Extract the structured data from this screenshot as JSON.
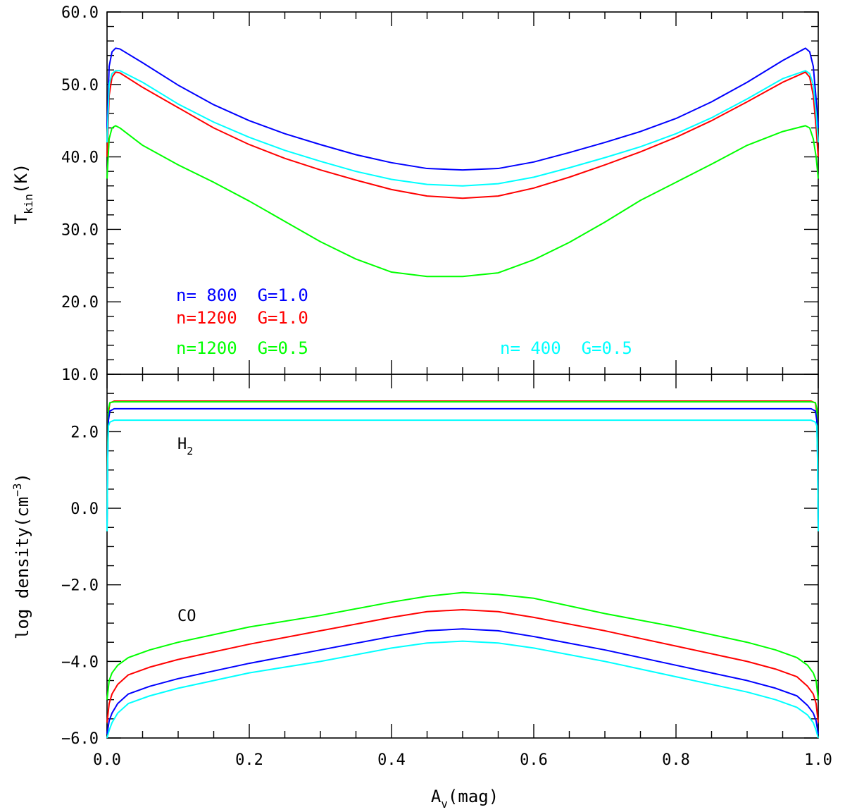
{
  "chart_data": [
    {
      "type": "line",
      "panel": "top",
      "xlabel": "",
      "ylabel_main": "T",
      "ylabel_sub": "kin",
      "ylabel_rest": "(K)",
      "xlim": [
        0.0,
        1.0
      ],
      "ylim": [
        10.0,
        60.0
      ],
      "yticks": [
        10.0,
        20.0,
        30.0,
        40.0,
        50.0,
        60.0
      ],
      "ytick_labels": [
        "10.0",
        "20.0",
        "30.0",
        "40.0",
        "50.0",
        "60.0"
      ],
      "legend": [
        {
          "label": "n= 800  G=1.0",
          "color": "#0000ff"
        },
        {
          "label": "n=1200  G=1.0",
          "color": "#ff0000"
        },
        {
          "label": "n=1200  G=0.5",
          "color": "#00ff00"
        },
        {
          "label": "n= 400  G=0.5",
          "color": "#00ffff"
        }
      ],
      "series": [
        {
          "name": "n= 800  G=1.0",
          "color": "#0000ff",
          "x": [
            0.0,
            0.003,
            0.007,
            0.012,
            0.018,
            0.05,
            0.1,
            0.15,
            0.2,
            0.25,
            0.3,
            0.35,
            0.4,
            0.45,
            0.5,
            0.55,
            0.6,
            0.65,
            0.7,
            0.75,
            0.8,
            0.85,
            0.9,
            0.95,
            0.982,
            0.988,
            0.993,
            0.997,
            1.0
          ],
          "y": [
            44.0,
            52.5,
            54.5,
            55.0,
            54.9,
            53.0,
            49.9,
            47.2,
            45.0,
            43.2,
            41.7,
            40.3,
            39.2,
            38.4,
            38.2,
            38.4,
            39.3,
            40.6,
            42.0,
            43.5,
            45.3,
            47.6,
            50.3,
            53.3,
            55.0,
            54.5,
            52.5,
            48.0,
            44.0
          ]
        },
        {
          "name": "n=1200  G=1.0",
          "color": "#ff0000",
          "x": [
            0.0,
            0.003,
            0.007,
            0.012,
            0.018,
            0.05,
            0.1,
            0.15,
            0.2,
            0.25,
            0.3,
            0.35,
            0.4,
            0.45,
            0.5,
            0.55,
            0.6,
            0.65,
            0.7,
            0.75,
            0.8,
            0.85,
            0.9,
            0.95,
            0.982,
            0.988,
            0.993,
            0.997,
            1.0
          ],
          "y": [
            40.0,
            48.5,
            51.0,
            51.7,
            51.6,
            49.6,
            46.8,
            44.0,
            41.7,
            39.8,
            38.2,
            36.8,
            35.5,
            34.6,
            34.3,
            34.6,
            35.7,
            37.2,
            38.9,
            40.7,
            42.7,
            45.0,
            47.6,
            50.3,
            51.7,
            51.0,
            48.5,
            44.0,
            40.0
          ]
        },
        {
          "name": "n= 400  G=0.5",
          "color": "#00ffff",
          "x": [
            0.0,
            0.003,
            0.007,
            0.012,
            0.018,
            0.05,
            0.1,
            0.15,
            0.2,
            0.25,
            0.3,
            0.35,
            0.4,
            0.45,
            0.5,
            0.55,
            0.6,
            0.65,
            0.7,
            0.75,
            0.8,
            0.85,
            0.9,
            0.95,
            0.982,
            0.988,
            0.993,
            0.997,
            1.0
          ],
          "y": [
            42.0,
            50.0,
            51.5,
            51.9,
            51.9,
            50.3,
            47.3,
            44.8,
            42.7,
            40.9,
            39.4,
            38.0,
            36.9,
            36.2,
            36.0,
            36.3,
            37.2,
            38.5,
            39.9,
            41.4,
            43.2,
            45.4,
            48.0,
            50.8,
            51.9,
            51.5,
            50.0,
            46.0,
            42.0
          ]
        },
        {
          "name": "n=1200  G=0.5",
          "color": "#00ff00",
          "x": [
            0.0,
            0.003,
            0.007,
            0.012,
            0.018,
            0.05,
            0.1,
            0.15,
            0.2,
            0.25,
            0.3,
            0.35,
            0.4,
            0.45,
            0.5,
            0.55,
            0.6,
            0.65,
            0.7,
            0.75,
            0.8,
            0.85,
            0.9,
            0.95,
            0.982,
            0.988,
            0.993,
            0.997,
            1.0
          ],
          "y": [
            37.0,
            42.5,
            44.0,
            44.3,
            44.0,
            41.6,
            38.9,
            36.5,
            33.9,
            31.1,
            28.3,
            25.9,
            24.1,
            23.5,
            23.5,
            24.0,
            25.8,
            28.2,
            31.0,
            34.0,
            36.5,
            39.0,
            41.6,
            43.5,
            44.3,
            44.0,
            42.5,
            40.0,
            37.0
          ]
        }
      ]
    },
    {
      "type": "line",
      "panel": "bottom",
      "xlabel_main": "A",
      "xlabel_sub": "v",
      "xlabel_rest": "(mag)",
      "ylabel": "log density(cm",
      "ylabel_sup": "−3",
      "ylabel_end": ")",
      "xlim": [
        0.0,
        1.0
      ],
      "ylim": [
        -6.0,
        3.5
      ],
      "xticks": [
        0.0,
        0.2,
        0.4,
        0.6,
        0.8,
        1.0
      ],
      "xtick_labels": [
        "0.0",
        "0.2",
        "0.4",
        "0.6",
        "0.8",
        "1.0"
      ],
      "yticks": [
        -6.0,
        -4.0,
        -2.0,
        0.0,
        2.0
      ],
      "ytick_labels": [
        "−6.0",
        "−4.0",
        "−2.0",
        "0.0",
        "2.0"
      ],
      "annotations": [
        {
          "main": "H",
          "sub": "2",
          "x": 0.1,
          "y": 1.7
        },
        {
          "main": "CO",
          "sub": "",
          "x": 0.1,
          "y": -2.8
        }
      ],
      "series": [
        {
          "name": "H2 n=1200 G=1.0",
          "color": "#ff0000",
          "x": [
            0.0,
            0.001,
            0.002,
            0.004,
            0.01,
            0.5,
            0.99,
            0.996,
            0.998,
            0.999,
            1.0
          ],
          "y": [
            -0.5,
            1.5,
            2.5,
            2.75,
            2.8,
            2.8,
            2.8,
            2.75,
            2.5,
            1.5,
            -0.5
          ]
        },
        {
          "name": "H2 n=1200 G=0.5",
          "color": "#00ff00",
          "x": [
            0.0,
            0.001,
            0.002,
            0.004,
            0.01,
            0.5,
            0.99,
            0.996,
            0.998,
            0.999,
            1.0
          ],
          "y": [
            -0.5,
            1.6,
            2.6,
            2.76,
            2.78,
            2.78,
            2.78,
            2.76,
            2.6,
            1.6,
            -0.5
          ]
        },
        {
          "name": "H2 n= 800 G=1.0",
          "color": "#0000ff",
          "x": [
            0.0,
            0.001,
            0.002,
            0.004,
            0.01,
            0.5,
            0.99,
            0.996,
            0.998,
            0.999,
            1.0
          ],
          "y": [
            -0.5,
            1.4,
            2.3,
            2.54,
            2.6,
            2.6,
            2.6,
            2.54,
            2.3,
            1.4,
            -0.5
          ]
        },
        {
          "name": "H2 n= 400 G=0.5",
          "color": "#00ffff",
          "x": [
            0.0,
            0.001,
            0.002,
            0.004,
            0.01,
            0.5,
            0.99,
            0.996,
            0.998,
            0.999,
            1.0
          ],
          "y": [
            -0.6,
            1.3,
            2.15,
            2.25,
            2.3,
            2.3,
            2.3,
            2.25,
            2.15,
            1.3,
            -0.6
          ]
        },
        {
          "name": "CO n=1200 G=0.5",
          "color": "#00ff00",
          "x": [
            0.0,
            0.003,
            0.007,
            0.015,
            0.03,
            0.06,
            0.1,
            0.2,
            0.3,
            0.4,
            0.45,
            0.5,
            0.55,
            0.6,
            0.7,
            0.8,
            0.9,
            0.94,
            0.97,
            0.985,
            0.993,
            0.997,
            1.0
          ],
          "y": [
            -5.0,
            -4.5,
            -4.3,
            -4.1,
            -3.9,
            -3.7,
            -3.5,
            -3.1,
            -2.8,
            -2.45,
            -2.3,
            -2.2,
            -2.25,
            -2.35,
            -2.75,
            -3.1,
            -3.5,
            -3.7,
            -3.9,
            -4.1,
            -4.3,
            -4.5,
            -5.0
          ]
        },
        {
          "name": "CO n=1200 G=1.0",
          "color": "#ff0000",
          "x": [
            0.0,
            0.003,
            0.007,
            0.015,
            0.03,
            0.06,
            0.1,
            0.2,
            0.3,
            0.4,
            0.45,
            0.5,
            0.55,
            0.6,
            0.7,
            0.8,
            0.9,
            0.94,
            0.97,
            0.985,
            0.993,
            0.997,
            1.0
          ],
          "y": [
            -5.6,
            -5.1,
            -4.85,
            -4.6,
            -4.35,
            -4.15,
            -3.95,
            -3.55,
            -3.2,
            -2.85,
            -2.7,
            -2.65,
            -2.7,
            -2.85,
            -3.2,
            -3.6,
            -4.0,
            -4.2,
            -4.4,
            -4.65,
            -4.85,
            -5.1,
            -5.6
          ]
        },
        {
          "name": "CO n= 800 G=1.0",
          "color": "#0000ff",
          "x": [
            0.0,
            0.003,
            0.007,
            0.015,
            0.03,
            0.06,
            0.1,
            0.2,
            0.3,
            0.4,
            0.45,
            0.5,
            0.55,
            0.6,
            0.7,
            0.8,
            0.9,
            0.94,
            0.97,
            0.985,
            0.993,
            0.997,
            1.0
          ],
          "y": [
            -5.9,
            -5.55,
            -5.35,
            -5.1,
            -4.85,
            -4.65,
            -4.45,
            -4.05,
            -3.7,
            -3.35,
            -3.2,
            -3.15,
            -3.2,
            -3.35,
            -3.7,
            -4.1,
            -4.5,
            -4.7,
            -4.9,
            -5.15,
            -5.35,
            -5.55,
            -5.9
          ]
        },
        {
          "name": "CO n= 400 G=0.5",
          "color": "#00ffff",
          "x": [
            0.0,
            0.003,
            0.007,
            0.015,
            0.03,
            0.06,
            0.1,
            0.2,
            0.3,
            0.4,
            0.45,
            0.5,
            0.55,
            0.6,
            0.7,
            0.8,
            0.9,
            0.94,
            0.97,
            0.985,
            0.993,
            0.997,
            1.0
          ],
          "y": [
            -6.0,
            -5.8,
            -5.6,
            -5.35,
            -5.1,
            -4.9,
            -4.7,
            -4.3,
            -4.0,
            -3.65,
            -3.52,
            -3.47,
            -3.52,
            -3.65,
            -4.0,
            -4.4,
            -4.8,
            -5.0,
            -5.2,
            -5.4,
            -5.6,
            -5.8,
            -6.0
          ]
        }
      ]
    }
  ]
}
